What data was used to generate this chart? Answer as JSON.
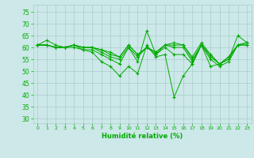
{
  "background_color": "#cce8e8",
  "grid_color": "#aacccc",
  "line_color": "#00aa00",
  "marker": "+",
  "xlabel": "Humidité relative (%)",
  "xlabel_color": "#00aa00",
  "tick_color": "#00aa00",
  "ylim": [
    28,
    78
  ],
  "yticks": [
    30,
    35,
    40,
    45,
    50,
    55,
    60,
    65,
    70,
    75
  ],
  "xlim": [
    -0.5,
    23.5
  ],
  "xticks": [
    0,
    1,
    2,
    3,
    4,
    5,
    6,
    7,
    8,
    9,
    10,
    11,
    12,
    13,
    14,
    15,
    16,
    17,
    18,
    19,
    20,
    21,
    22,
    23
  ],
  "series": [
    [
      61,
      63,
      61,
      60,
      61,
      59,
      58,
      54,
      52,
      48,
      52,
      49,
      61,
      56,
      57,
      39,
      48,
      53,
      61,
      52,
      53,
      55,
      65,
      62
    ],
    [
      61,
      61,
      60,
      60,
      60,
      59,
      59,
      57,
      55,
      53,
      60,
      54,
      67,
      57,
      60,
      57,
      57,
      53,
      61,
      55,
      52,
      54,
      61,
      61
    ],
    [
      61,
      61,
      60,
      60,
      61,
      60,
      60,
      58,
      56,
      55,
      60,
      56,
      60,
      57,
      61,
      60,
      60,
      54,
      61,
      56,
      53,
      55,
      61,
      61
    ],
    [
      61,
      61,
      60,
      60,
      61,
      60,
      60,
      59,
      57,
      56,
      61,
      57,
      60,
      58,
      61,
      61,
      61,
      55,
      61,
      57,
      53,
      56,
      61,
      62
    ],
    [
      61,
      61,
      60,
      60,
      61,
      60,
      60,
      59,
      58,
      56,
      61,
      57,
      60,
      58,
      61,
      62,
      61,
      56,
      62,
      57,
      53,
      56,
      61,
      62
    ]
  ]
}
